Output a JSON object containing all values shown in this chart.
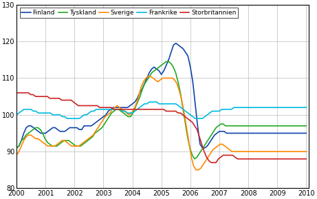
{
  "countries": [
    "Finland",
    "Tyskland",
    "Sverige",
    "Frankrike",
    "Storbritannien"
  ],
  "colors": [
    "#1144aa",
    "#22aa22",
    "#ff8800",
    "#00bbdd",
    "#cc2222"
  ],
  "linewidths": [
    1.2,
    1.2,
    1.2,
    1.2,
    1.2
  ],
  "xlim": [
    2000,
    2010.08
  ],
  "ylim": [
    80,
    130
  ],
  "yticks": [
    80,
    90,
    100,
    110,
    120,
    130
  ],
  "xticks": [
    2000,
    2001,
    2002,
    2003,
    2004,
    2005,
    2006,
    2007,
    2008,
    2009,
    2010
  ],
  "grid_color": "#bbbbbb",
  "background_color": "#ffffff",
  "n_months": 121,
  "finland": [
    91,
    91.5,
    93,
    95,
    96.5,
    97,
    97,
    96.5,
    96,
    95.5,
    95,
    95,
    95,
    95.5,
    96,
    96.5,
    96.5,
    96,
    95.5,
    95.5,
    95.5,
    96,
    96.5,
    96.5,
    96.5,
    96.5,
    96,
    96,
    97,
    97,
    97,
    97,
    97.5,
    98,
    98.5,
    99,
    99.5,
    100,
    101,
    101.5,
    102,
    102,
    102,
    102,
    102,
    102,
    102,
    102.5,
    103,
    103.5,
    104.5,
    106,
    107,
    108.5,
    110,
    111.5,
    112.5,
    113,
    112.5,
    112,
    111,
    112,
    113.5,
    115,
    117,
    119,
    119.5,
    119,
    118.5,
    118,
    117,
    116,
    113,
    109,
    103,
    97,
    92,
    91,
    91,
    91.5,
    92.5,
    93.5,
    94.5,
    95,
    95.5,
    95.5,
    95.5,
    95,
    95,
    95,
    95,
    95,
    95,
    95,
    95,
    95,
    95,
    95,
    95,
    95,
    95,
    95,
    95,
    95,
    95,
    95,
    95,
    95,
    95,
    95,
    95,
    95,
    95,
    95,
    95,
    95,
    95,
    95,
    95,
    95,
    95
  ],
  "tyskland": [
    91,
    91.5,
    93,
    93.5,
    94.5,
    95,
    95.5,
    96,
    96.5,
    96.5,
    96,
    95,
    93.5,
    92.5,
    92,
    91.5,
    91.5,
    91.5,
    92,
    92.5,
    93,
    93,
    93,
    92.5,
    92,
    91.5,
    91.5,
    91.5,
    92,
    92.5,
    93,
    93.5,
    94,
    95,
    95.5,
    96,
    96.5,
    97.5,
    98.5,
    99.5,
    100.5,
    101,
    101.5,
    101.5,
    101,
    100.5,
    100,
    99.5,
    99.5,
    100.5,
    102,
    103.5,
    105,
    107,
    108.5,
    109.5,
    110.5,
    111.5,
    112,
    112.5,
    113,
    113.5,
    114,
    114.5,
    114.5,
    114,
    113,
    111.5,
    109,
    106,
    102,
    98,
    94,
    91,
    89,
    88,
    88.5,
    89.5,
    90.5,
    91.5,
    92.5,
    93.5,
    94.5,
    95.5,
    96.5,
    97,
    97.5,
    97.5,
    97,
    97,
    97,
    97,
    97,
    97,
    97,
    97,
    97,
    97,
    97,
    97,
    97,
    97,
    97,
    97,
    97,
    97,
    97,
    97,
    97,
    97,
    97,
    97,
    97,
    97,
    97,
    97,
    97,
    97,
    97,
    97,
    97,
    97,
    97
  ],
  "sverige": [
    89,
    90,
    91.5,
    93,
    94,
    94.5,
    94.5,
    94,
    93.5,
    93.5,
    93,
    92.5,
    92,
    91.5,
    91.5,
    91.5,
    91.5,
    92,
    92.5,
    93,
    93,
    92.5,
    92,
    91.5,
    91.5,
    91.5,
    91.5,
    92,
    92.5,
    93,
    93.5,
    94,
    94.5,
    95.5,
    96.5,
    97.5,
    98.5,
    99.5,
    100,
    100.5,
    101.5,
    102,
    102.5,
    102,
    101.5,
    101,
    100.5,
    100,
    100.5,
    101.5,
    103,
    105,
    107.5,
    109,
    110,
    110.5,
    110.5,
    110,
    109.5,
    109,
    109.5,
    110,
    110,
    110,
    110,
    110,
    109.5,
    108.5,
    106.5,
    104,
    100.5,
    96.5,
    92.5,
    88.5,
    86,
    85,
    85,
    85.5,
    86.5,
    87.5,
    88.5,
    89.5,
    90.5,
    91,
    91.5,
    92,
    92,
    91.5,
    91,
    90.5,
    90,
    90,
    90,
    90,
    90,
    90,
    90,
    90,
    90,
    90,
    90,
    90,
    90,
    90,
    90,
    90,
    90,
    90,
    90,
    90,
    90,
    90,
    90,
    90,
    90,
    90,
    90,
    90,
    90,
    90,
    90,
    90
  ],
  "frankrike": [
    100,
    100.5,
    101,
    101.5,
    101.5,
    101.5,
    101.5,
    101,
    101,
    100.5,
    100.5,
    100.5,
    100.5,
    100.5,
    100.5,
    100,
    100,
    100,
    100,
    99.5,
    99.5,
    99,
    99,
    99,
    99,
    99,
    99,
    99.5,
    100,
    100,
    100.5,
    101,
    101,
    101.5,
    101.5,
    101.5,
    101.5,
    101.5,
    101.5,
    101.5,
    101.5,
    101.5,
    101.5,
    101.5,
    101,
    101,
    100.5,
    100.5,
    100.5,
    101,
    101.5,
    102,
    102.5,
    103,
    103,
    103.5,
    103.5,
    103.5,
    103.5,
    103,
    103,
    103,
    103,
    103,
    103,
    103,
    103,
    102.5,
    102,
    101.5,
    101,
    100.5,
    100,
    99.5,
    99,
    99,
    99,
    99,
    99.5,
    100,
    100.5,
    101,
    101,
    101,
    101,
    101.5,
    101.5,
    101.5,
    101.5,
    101.5,
    102,
    102,
    102,
    102,
    102,
    102,
    102,
    102,
    102,
    102,
    102,
    102,
    102,
    102,
    102,
    102,
    102,
    102,
    102,
    102,
    102,
    102,
    102,
    102,
    102,
    102,
    102,
    102,
    102,
    102,
    102
  ],
  "storbritannien": [
    106,
    106,
    106,
    106,
    106,
    106,
    105.5,
    105.5,
    105,
    105,
    105,
    105,
    105,
    105,
    104.5,
    104.5,
    104.5,
    104.5,
    104.5,
    104,
    104,
    104,
    104,
    104,
    103.5,
    103,
    102.5,
    102.5,
    102.5,
    102.5,
    102.5,
    102.5,
    102.5,
    102.5,
    102.5,
    102,
    102,
    102,
    102,
    102,
    102,
    101.5,
    101.5,
    101.5,
    101.5,
    101.5,
    101.5,
    101.5,
    101.5,
    101.5,
    101.5,
    101.5,
    101.5,
    101.5,
    101.5,
    101.5,
    101.5,
    101.5,
    101.5,
    101.5,
    101.5,
    101.5,
    101.5,
    101,
    101,
    101,
    101,
    101,
    100.5,
    100.5,
    100,
    99.5,
    99,
    98.5,
    98,
    97,
    96,
    94,
    92,
    90,
    88.5,
    87.5,
    87,
    87,
    87,
    88,
    88.5,
    89,
    89,
    89,
    89,
    89,
    88.5,
    88,
    88,
    88,
    88,
    88,
    88,
    88,
    88,
    88,
    88,
    88,
    88,
    88,
    88,
    88,
    88,
    88,
    88,
    88,
    88,
    88,
    88,
    88,
    88,
    88,
    88,
    88,
    88,
    88,
    88
  ]
}
